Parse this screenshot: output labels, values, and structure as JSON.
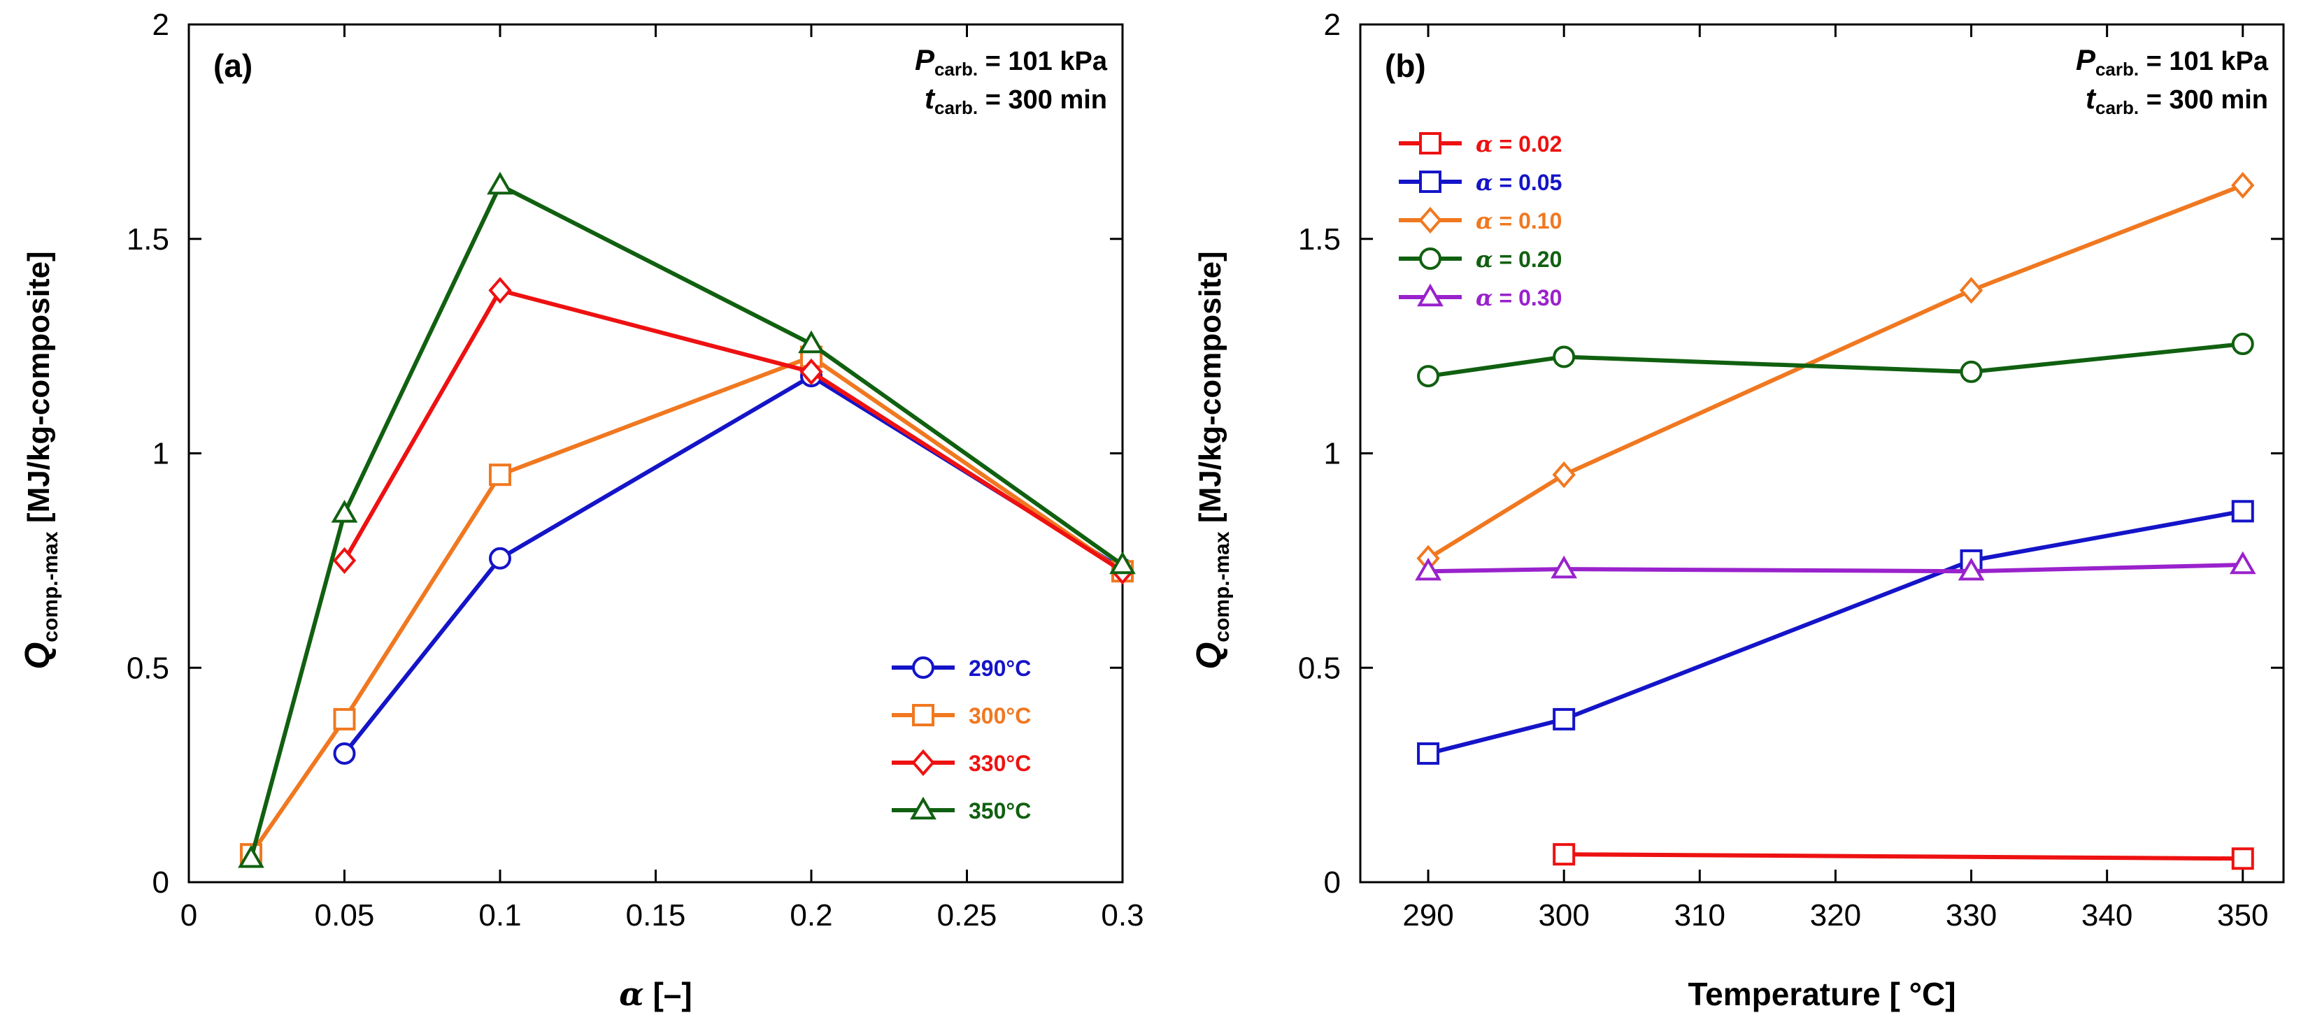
{
  "figure_label": "Two-panel line chart figure",
  "chart_data": [
    {
      "type": "line",
      "panel_label": "(a)",
      "xlabel_symbol": "α",
      "xlabel_unit": " [–]",
      "ylabel_symbol": "Q",
      "ylabel_sub": "comp.-max",
      "ylabel_unit": " [MJ/kg-composite]",
      "xlim": [
        0,
        0.3
      ],
      "ylim": [
        0,
        2
      ],
      "xticks": [
        "0",
        "0.05",
        "0.1",
        "0.15",
        "0.2",
        "0.25",
        "0.3"
      ],
      "yticks": [
        "0",
        "0.5",
        "1",
        "1.5",
        "2"
      ],
      "annotation": {
        "line1_symbol": "P",
        "line1_sub": "carb.",
        "line1_value": " = 101 kPa",
        "line2_symbol": "t",
        "line2_sub": "carb.",
        "line2_value": " = 300 min"
      },
      "legend_position": "bottom-right",
      "series": [
        {
          "name": "290°C",
          "color": "#1414c8",
          "marker": "circle",
          "x": [
            0.05,
            0.1,
            0.2,
            0.3
          ],
          "y": [
            0.3,
            0.755,
            1.18,
            0.73
          ]
        },
        {
          "name": "300°C",
          "color": "#f07820",
          "marker": "square",
          "x": [
            0.02,
            0.05,
            0.1,
            0.2,
            0.3
          ],
          "y": [
            0.065,
            0.38,
            0.95,
            1.225,
            0.725
          ]
        },
        {
          "name": "330°C",
          "color": "#ee1111",
          "marker": "diamond",
          "x": [
            0.05,
            0.1,
            0.2,
            0.3
          ],
          "y": [
            0.75,
            1.38,
            1.19,
            0.725
          ]
        },
        {
          "name": "350°C",
          "color": "#106010",
          "marker": "triangle",
          "x": [
            0.02,
            0.05,
            0.1,
            0.2,
            0.3
          ],
          "y": [
            0.055,
            0.86,
            1.625,
            1.255,
            0.74
          ]
        }
      ]
    },
    {
      "type": "line",
      "panel_label": "(b)",
      "xlabel_symbol": "",
      "xlabel_unit": "Temperature [ °C]",
      "ylabel_symbol": "Q",
      "ylabel_sub": "comp.-max",
      "ylabel_unit": " [MJ/kg-composite]",
      "xlim": [
        285,
        353
      ],
      "ylim": [
        0,
        2
      ],
      "xticks": [
        "290",
        "300",
        "310",
        "320",
        "330",
        "340",
        "350"
      ],
      "yticks": [
        "0",
        "0.5",
        "1",
        "1.5",
        "2"
      ],
      "annotation": {
        "line1_symbol": "P",
        "line1_sub": "carb.",
        "line1_value": " = 101 kPa",
        "line2_symbol": "t",
        "line2_sub": "carb.",
        "line2_value": " = 300 min"
      },
      "legend_position": "top-left",
      "series": [
        {
          "name": "α = 0.02",
          "color": "#ee1111",
          "marker": "square",
          "x": [
            300,
            350
          ],
          "y": [
            0.065,
            0.055
          ]
        },
        {
          "name": "α = 0.05",
          "color": "#1414c8",
          "marker": "square",
          "x": [
            290,
            300,
            330,
            350
          ],
          "y": [
            0.3,
            0.38,
            0.75,
            0.865
          ]
        },
        {
          "name": "α = 0.10",
          "color": "#f07820",
          "marker": "diamond",
          "x": [
            290,
            300,
            330,
            350
          ],
          "y": [
            0.755,
            0.95,
            1.38,
            1.625
          ]
        },
        {
          "name": "α = 0.20",
          "color": "#106010",
          "marker": "circle",
          "x": [
            290,
            300,
            330,
            350
          ],
          "y": [
            1.18,
            1.225,
            1.19,
            1.255
          ]
        },
        {
          "name": "α = 0.30",
          "color": "#9922cc",
          "marker": "triangle",
          "x": [
            290,
            300,
            330,
            350
          ],
          "y": [
            0.725,
            0.73,
            0.725,
            0.74
          ]
        }
      ]
    }
  ]
}
